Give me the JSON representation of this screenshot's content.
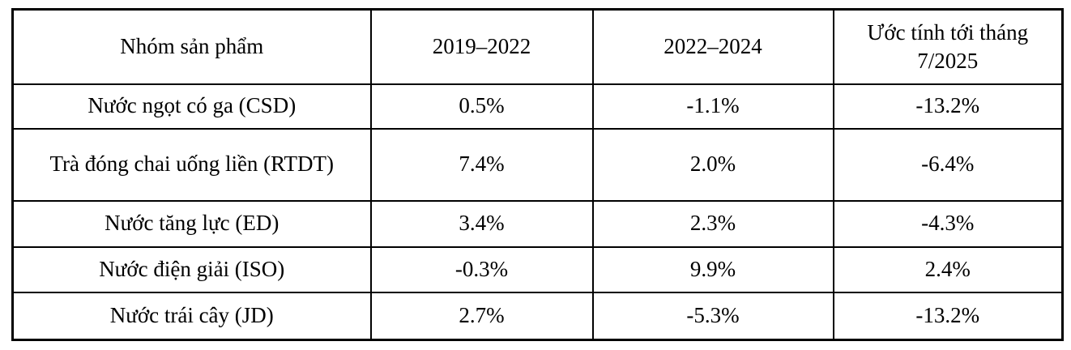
{
  "table": {
    "columns": [
      "Nhóm sản phẩm",
      "2019–2022",
      "2022–2024",
      "Ước tính tới tháng 7/2025"
    ],
    "rows": [
      {
        "product": "Nước ngọt có ga (CSD)",
        "values": [
          "0.5%",
          "-1.1%",
          "-13.2%"
        ]
      },
      {
        "product": "Trà đóng chai uống liền (RTDT)",
        "values": [
          "7.4%",
          "2.0%",
          "-6.4%"
        ]
      },
      {
        "product": "Nước tăng lực (ED)",
        "values": [
          "3.4%",
          "2.3%",
          "-4.3%"
        ]
      },
      {
        "product": "Nước điện giải (ISO)",
        "values": [
          "-0.3%",
          "9.9%",
          "2.4%"
        ]
      },
      {
        "product": "Nước trái cây (JD)",
        "values": [
          "2.7%",
          "-5.3%",
          "-13.2%"
        ]
      }
    ],
    "style": {
      "border_color": "#000000",
      "background": "#ffffff",
      "text_color": "#000000"
    }
  }
}
